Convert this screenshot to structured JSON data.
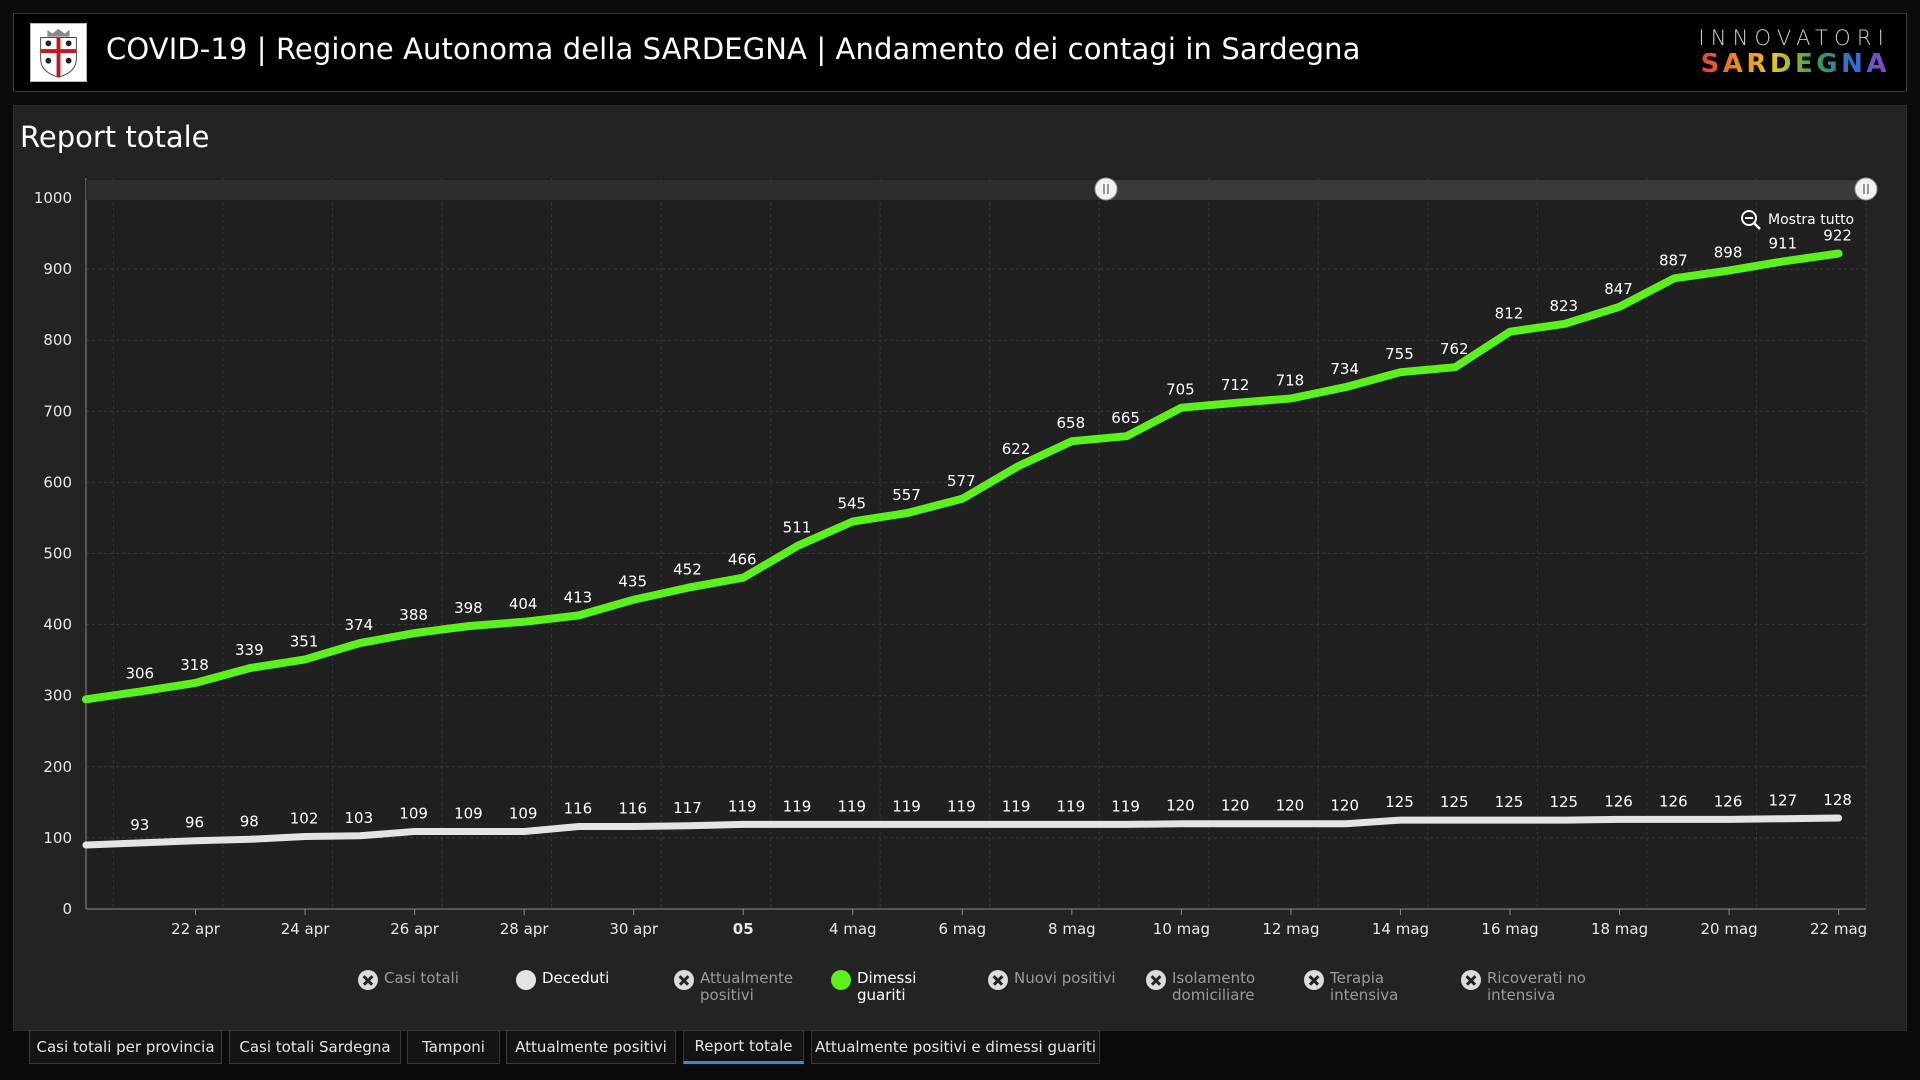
{
  "header": {
    "title": "COVID-19 | Regione Autonoma della SARDEGNA | Andamento dei contagi in Sardegna",
    "logo_top": "INNOVATORI",
    "logo_bottom": "SARDEGNA"
  },
  "panel": {
    "title": "Report totale",
    "zoom_reset_label": "Mostra tutto"
  },
  "colors": {
    "dimessi": "#5cf01c",
    "deceduti": "#e4e4e4",
    "background": "#232323",
    "tab_active": "#2f8fd8"
  },
  "legend": [
    {
      "label": "Casi totali",
      "active": false
    },
    {
      "label": "Deceduti",
      "active": true
    },
    {
      "label": "Attualmente positivi",
      "active": false
    },
    {
      "label": "Dimessi guariti",
      "active": true
    },
    {
      "label": "Nuovi positivi",
      "active": false
    },
    {
      "label": "Isolamento domiciliare",
      "active": false
    },
    {
      "label": "Terapia intensiva",
      "active": false
    },
    {
      "label": "Ricoverati no intensiva",
      "active": false
    }
  ],
  "tabs": [
    {
      "label": "Casi totali per provincia",
      "active": false
    },
    {
      "label": "Casi totali Sardegna",
      "active": false
    },
    {
      "label": "Tamponi",
      "active": false
    },
    {
      "label": "Attualmente positivi",
      "active": false
    },
    {
      "label": "Report totale",
      "active": true
    },
    {
      "label": "Attualmente positivi e dimessi guariti",
      "active": false
    }
  ],
  "chart_data": {
    "type": "line",
    "x": [
      "2020-04-20",
      "2020-04-21",
      "2020-04-22",
      "2020-04-23",
      "2020-04-24",
      "2020-04-25",
      "2020-04-26",
      "2020-04-27",
      "2020-04-28",
      "2020-04-29",
      "2020-04-30",
      "2020-05-01",
      "2020-05-02",
      "2020-05-03",
      "2020-05-04",
      "2020-05-05",
      "2020-05-06",
      "2020-05-07",
      "2020-05-08",
      "2020-05-09",
      "2020-05-10",
      "2020-05-11",
      "2020-05-12",
      "2020-05-13",
      "2020-05-14",
      "2020-05-15",
      "2020-05-16",
      "2020-05-17",
      "2020-05-18",
      "2020-05-19",
      "2020-05-20",
      "2020-05-21",
      "2020-05-22"
    ],
    "x_tick_labels": [
      "22 apr",
      "24 apr",
      "26 apr",
      "28 apr",
      "30 apr",
      "05",
      "4 mag",
      "6 mag",
      "8 mag",
      "10 mag",
      "12 mag",
      "14 mag",
      "16 mag",
      "18 mag",
      "20 mag",
      "22 mag"
    ],
    "y_ticks": [
      0,
      100,
      200,
      300,
      400,
      500,
      600,
      700,
      800,
      900,
      1000
    ],
    "ylim": [
      0,
      1000
    ],
    "grid": true,
    "series": [
      {
        "name": "Dimessi guariti",
        "values": [
          295,
          306,
          318,
          339,
          351,
          374,
          388,
          398,
          404,
          413,
          435,
          452,
          466,
          511,
          545,
          557,
          577,
          622,
          658,
          665,
          705,
          712,
          718,
          734,
          755,
          762,
          812,
          823,
          847,
          887,
          898,
          911,
          922
        ],
        "labels": [
          null,
          306,
          318,
          339,
          351,
          374,
          388,
          398,
          404,
          413,
          435,
          452,
          466,
          511,
          545,
          557,
          577,
          622,
          658,
          665,
          705,
          712,
          718,
          734,
          755,
          762,
          812,
          823,
          847,
          887,
          898,
          911,
          922
        ]
      },
      {
        "name": "Deceduti",
        "values": [
          90,
          93,
          96,
          98,
          102,
          103,
          109,
          109,
          109,
          116,
          116,
          117,
          119,
          119,
          119,
          119,
          119,
          119,
          119,
          119,
          120,
          120,
          120,
          120,
          125,
          125,
          125,
          125,
          126,
          126,
          126,
          127,
          128
        ],
        "labels": [
          null,
          93,
          96,
          98,
          102,
          103,
          109,
          109,
          109,
          116,
          116,
          117,
          119,
          119,
          119,
          119,
          119,
          119,
          119,
          119,
          120,
          120,
          120,
          120,
          125,
          125,
          125,
          125,
          126,
          126,
          126,
          127,
          128
        ]
      }
    ]
  }
}
